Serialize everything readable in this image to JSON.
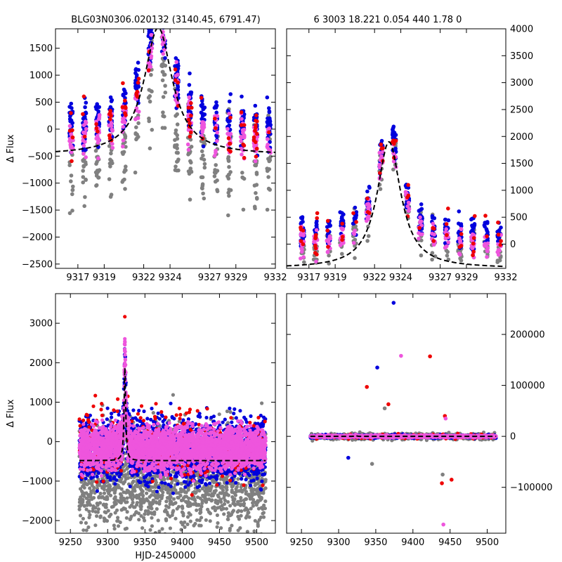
{
  "header": {
    "left_title": "BLG03N0306.020132 (3140.45, 6791.47)",
    "right_title": "6 3003 18.221 0.054 440   1.78    0"
  },
  "colors": {
    "gray": "#808080",
    "blue": "#0000dd",
    "red": "#ee0000",
    "magenta": "#ee55dd"
  },
  "chart_data": [
    {
      "type": "scatter",
      "name": "zoom-raw",
      "title": "BLG03N0306.020132 (3140.45, 6791.47)",
      "xlabel": "",
      "ylabel": "Δ Flux",
      "xlim": [
        9315.3,
        9332
      ],
      "ylim": [
        -2580,
        1860
      ],
      "xticks": [
        9317,
        9319,
        9322,
        9324,
        9327,
        9329,
        9332
      ],
      "xticklabels": [
        "9317",
        "9319",
        "9322",
        "9324",
        "9327",
        "9329",
        "9332"
      ],
      "yticks": [
        -2500,
        -2000,
        -1500,
        -1000,
        -500,
        0,
        500,
        1000,
        1500
      ],
      "yticklabels": [
        "−2500",
        "−2000",
        "−1500",
        "−1000",
        "−500",
        "0",
        "500",
        "1000",
        "1500"
      ],
      "fit": {
        "t0": 9323.1,
        "base": -480,
        "peak": 2360,
        "width": 1.3
      },
      "series": [
        {
          "name": "gray",
          "mean": -850,
          "spread": 750,
          "n": 300,
          "clusters": true
        },
        {
          "name": "blue",
          "mean": 0,
          "spread": 380,
          "n": 420,
          "clusters": true
        },
        {
          "name": "magenta",
          "mean": -250,
          "spread": 330,
          "n": 230,
          "clusters": true
        },
        {
          "name": "red",
          "mean": -150,
          "spread": 420,
          "n": 80,
          "clusters": true
        }
      ]
    },
    {
      "type": "scatter",
      "name": "zoom-scaled",
      "title": "6 3003 18.221 0.054 440   1.78    0",
      "xlabel": "",
      "ylabel": "",
      "xlim": [
        9315.3,
        9332
      ],
      "ylim": [
        -450,
        4000
      ],
      "xticks": [
        9317,
        9319,
        9322,
        9324,
        9327,
        9329,
        9332
      ],
      "xticklabels": [
        "9317",
        "9319",
        "9322",
        "9324",
        "9327",
        "9329",
        "9332"
      ],
      "yticks": [
        0,
        500,
        1000,
        1500,
        2000,
        2500,
        3000,
        3500,
        4000
      ],
      "yticklabels": [
        "0",
        "500",
        "1000",
        "1500",
        "2000",
        "2500",
        "3000",
        "3500",
        "4000"
      ],
      "fit": {
        "t0": 9323.1,
        "base": -450,
        "peak": 2350,
        "width": 1.1
      },
      "series": [
        {
          "name": "gray",
          "mean": -100,
          "spread": 350,
          "n": 200,
          "clusters": true
        },
        {
          "name": "blue",
          "mean": 150,
          "spread": 250,
          "n": 320,
          "clusters": true
        },
        {
          "name": "magenta",
          "mean": -50,
          "spread": 220,
          "n": 180,
          "clusters": true
        },
        {
          "name": "red",
          "mean": 100,
          "spread": 300,
          "n": 60,
          "clusters": true
        }
      ]
    },
    {
      "type": "scatter",
      "name": "full-raw",
      "title": "",
      "xlabel": "HJD-2450000",
      "ylabel": "Δ Flux",
      "xlim": [
        9230,
        9525
      ],
      "ylim": [
        -2320,
        3750
      ],
      "xticks": [
        9250,
        9300,
        9350,
        9400,
        9450,
        9500
      ],
      "xticklabels": [
        "9250",
        "9300",
        "9350",
        "9400",
        "9450",
        "9500"
      ],
      "yticks": [
        -2000,
        -1000,
        0,
        1000,
        2000,
        3000
      ],
      "yticklabels": [
        "−2000",
        "−1000",
        "0",
        "1000",
        "2000",
        "3000"
      ],
      "fit": {
        "t0": 9323.1,
        "base": -480,
        "peak": 2360,
        "width": 1.3
      },
      "series": [
        {
          "name": "gray",
          "mean": -900,
          "spread": 1100,
          "n": 1700,
          "clusters": false
        },
        {
          "name": "blue",
          "mean": -200,
          "spread": 650,
          "n": 2300,
          "clusters": false
        },
        {
          "name": "red",
          "mean": -100,
          "spread": 800,
          "n": 300,
          "clusters": false
        },
        {
          "name": "magenta",
          "mean": -150,
          "spread": 450,
          "n": 2800,
          "clusters": false
        }
      ]
    },
    {
      "type": "scatter",
      "name": "full-scaled",
      "title": "",
      "xlabel": "",
      "ylabel": "",
      "xlim": [
        9230,
        9525
      ],
      "ylim": [
        -190000,
        280000
      ],
      "xticks": [
        9250,
        9300,
        9350,
        9400,
        9450,
        9500
      ],
      "xticklabels": [
        "9250",
        "9300",
        "9350",
        "9400",
        "9450",
        "9500"
      ],
      "yticks": [
        -100000,
        0,
        100000,
        200000
      ],
      "yticklabels": [
        "−100000",
        "0",
        "100000",
        "200000"
      ],
      "fit": {
        "t0": 9323.1,
        "base": 0,
        "peak": 2000,
        "width": 1.3
      },
      "series": [
        {
          "name": "gray",
          "mean": 0,
          "spread": 5000,
          "n": 700,
          "clusters": false
        },
        {
          "name": "blue",
          "mean": 0,
          "spread": 2500,
          "n": 900,
          "clusters": false
        },
        {
          "name": "red",
          "mean": 0,
          "spread": 4000,
          "n": 120,
          "clusters": false
        },
        {
          "name": "magenta",
          "mean": 0,
          "spread": 1800,
          "n": 1100,
          "clusters": false
        }
      ],
      "outliers": [
        {
          "x": 9374,
          "y": 262000,
          "c": "blue"
        },
        {
          "x": 9384,
          "y": 158000,
          "c": "magenta"
        },
        {
          "x": 9423,
          "y": 157000,
          "c": "red"
        },
        {
          "x": 9352,
          "y": 135000,
          "c": "blue"
        },
        {
          "x": 9338,
          "y": 97000,
          "c": "red"
        },
        {
          "x": 9367,
          "y": 63000,
          "c": "red"
        },
        {
          "x": 9362,
          "y": 55000,
          "c": "gray"
        },
        {
          "x": 9443,
          "y": 40000,
          "c": "red"
        },
        {
          "x": 9444,
          "y": 35000,
          "c": "magenta"
        },
        {
          "x": 9439,
          "y": -92000,
          "c": "red"
        },
        {
          "x": 9452,
          "y": -85000,
          "c": "red"
        },
        {
          "x": 9441,
          "y": -173000,
          "c": "magenta"
        },
        {
          "x": 9313,
          "y": -42000,
          "c": "blue"
        },
        {
          "x": 9345,
          "y": -54000,
          "c": "gray"
        },
        {
          "x": 9440,
          "y": -75000,
          "c": "gray"
        }
      ]
    }
  ]
}
